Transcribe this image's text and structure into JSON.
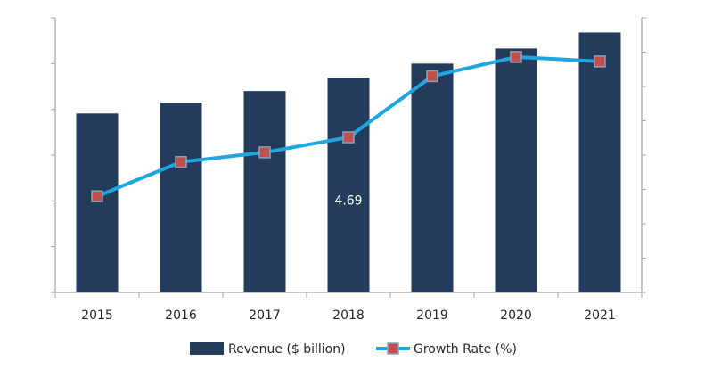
{
  "chart_data": {
    "type": "bar+line",
    "title": "",
    "categories": [
      "2015",
      "2016",
      "2017",
      "2018",
      "2019",
      "2020",
      "2021"
    ],
    "series": [
      {
        "name": "Revenue ($ billion)",
        "type": "bar",
        "axis": "left",
        "color": "#243c5c",
        "values": [
          3.91,
          4.15,
          4.4,
          4.69,
          5.0,
          5.33,
          5.68
        ]
      },
      {
        "name": "Growth Rate (%)",
        "type": "line",
        "axis": "right",
        "color": "#1fa6e0",
        "marker_color": "#c0504d",
        "values": [
          2.8,
          3.8,
          4.08,
          4.52,
          6.3,
          6.86,
          6.73
        ]
      }
    ],
    "data_labels": [
      {
        "category": "2018",
        "series": "Revenue ($ billion)",
        "text": "4.69"
      }
    ],
    "left_axis": {
      "ylim": [
        0,
        6
      ],
      "tick_labels_shown": false
    },
    "right_axis": {
      "ylim": [
        0,
        8
      ],
      "tick_labels_shown": false
    },
    "grid": false,
    "legend": {
      "placement": "bottom"
    }
  }
}
